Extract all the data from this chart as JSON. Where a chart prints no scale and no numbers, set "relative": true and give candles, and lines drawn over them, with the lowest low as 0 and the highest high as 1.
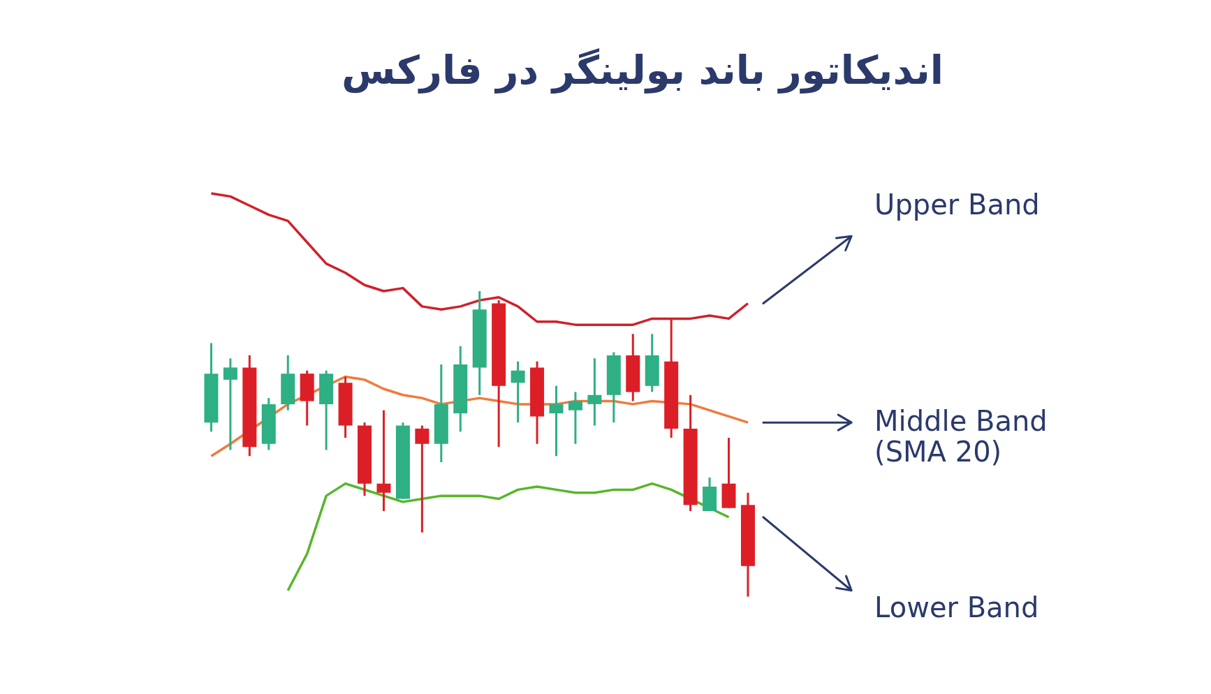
{
  "chart_data": {
    "type": "candlestick",
    "title": "اندیکاتور باند بولینگر در فارکس",
    "relative": true,
    "categories": [
      null,
      null,
      null,
      null,
      null,
      null,
      null,
      null,
      null,
      null,
      null,
      null,
      null,
      null,
      null,
      null,
      null,
      null,
      null,
      null,
      null,
      null,
      null,
      null,
      null,
      null,
      null,
      null,
      null
    ],
    "ohlc": [
      [
        0.57,
        0.83,
        0.54,
        0.73
      ],
      [
        0.71,
        0.78,
        0.48,
        0.75
      ],
      [
        0.75,
        0.79,
        0.46,
        0.49
      ],
      [
        0.5,
        0.65,
        0.48,
        0.63
      ],
      [
        0.63,
        0.79,
        0.61,
        0.73
      ],
      [
        0.73,
        0.74,
        0.56,
        0.64
      ],
      [
        0.63,
        0.74,
        0.48,
        0.73
      ],
      [
        0.7,
        0.72,
        0.52,
        0.56
      ],
      [
        0.56,
        0.57,
        0.33,
        0.37
      ],
      [
        0.37,
        0.61,
        0.28,
        0.34
      ],
      [
        0.32,
        0.57,
        0.32,
        0.56
      ],
      [
        0.55,
        0.56,
        0.21,
        0.5
      ],
      [
        0.5,
        0.76,
        0.44,
        0.63
      ],
      [
        0.6,
        0.82,
        0.54,
        0.76
      ],
      [
        0.75,
        1.0,
        0.66,
        0.94
      ],
      [
        0.96,
        0.97,
        0.49,
        0.69
      ],
      [
        0.7,
        0.77,
        0.57,
        0.74
      ],
      [
        0.75,
        0.77,
        0.5,
        0.59
      ],
      [
        0.6,
        0.69,
        0.46,
        0.63
      ],
      [
        0.61,
        0.67,
        0.5,
        0.64
      ],
      [
        0.63,
        0.78,
        0.56,
        0.66
      ],
      [
        0.66,
        0.8,
        0.57,
        0.79
      ],
      [
        0.79,
        0.86,
        0.64,
        0.67
      ],
      [
        0.69,
        0.86,
        0.67,
        0.79
      ],
      [
        0.77,
        0.91,
        0.52,
        0.55
      ],
      [
        0.55,
        0.66,
        0.28,
        0.3
      ],
      [
        0.28,
        0.39,
        0.28,
        0.36
      ],
      [
        0.37,
        0.52,
        0.29,
        0.29
      ],
      [
        0.3,
        0.34,
        0.0,
        0.1
      ]
    ],
    "colors": [
      "#2eaf84",
      "#2eaf84",
      "#dc1f26",
      "#2eaf84",
      "#2eaf84",
      "#dc1f26",
      "#2eaf84",
      "#dc1f26",
      "#dc1f26",
      "#dc1f26",
      "#2eaf84",
      "#dc1f26",
      "#2eaf84",
      "#2eaf84",
      "#2eaf84",
      "#dc1f26",
      "#2eaf84",
      "#dc1f26",
      "#2eaf84",
      "#2eaf84",
      "#2eaf84",
      "#2eaf84",
      "#dc1f26",
      "#2eaf84",
      "#dc1f26",
      "#dc1f26",
      "#2eaf84",
      "#dc1f26",
      "#dc1f26"
    ],
    "series": [
      {
        "type": "line",
        "color": "#d0202a",
        "values": [
          1.32,
          1.31,
          1.28,
          1.25,
          1.23,
          1.16,
          1.09,
          1.06,
          1.02,
          1.0,
          1.01,
          0.95,
          0.94,
          0.95,
          0.97,
          0.98,
          0.95,
          0.9,
          0.9,
          0.89,
          0.89,
          0.89,
          0.89,
          0.91,
          0.91,
          0.91,
          0.92,
          0.91,
          0.96
        ]
      },
      {
        "type": "line",
        "color": "#f07a3c",
        "values": [
          0.46,
          0.5,
          null,
          null,
          0.63,
          null,
          null,
          0.72,
          0.71,
          0.68,
          0.66,
          0.65,
          0.63,
          null,
          0.65,
          0.64,
          0.63,
          null,
          0.63,
          0.64,
          null,
          0.64,
          0.63,
          0.64,
          null,
          0.63,
          0.61,
          0.59,
          0.57
        ]
      },
      {
        "type": "line",
        "color": "#56b62a",
        "values": [
          null,
          null,
          null,
          null,
          0.02,
          0.14,
          0.33,
          0.37,
          null,
          null,
          0.31,
          0.32,
          0.33,
          0.33,
          0.33,
          0.32,
          0.35,
          0.36,
          0.35,
          0.34,
          0.34,
          0.35,
          0.35,
          0.37,
          0.35,
          null,
          null,
          0.26,
          null
        ]
      }
    ],
    "annotations": [
      "Upper Band",
      "Middle Band\n(SMA 20)",
      "Lower Band"
    ]
  }
}
